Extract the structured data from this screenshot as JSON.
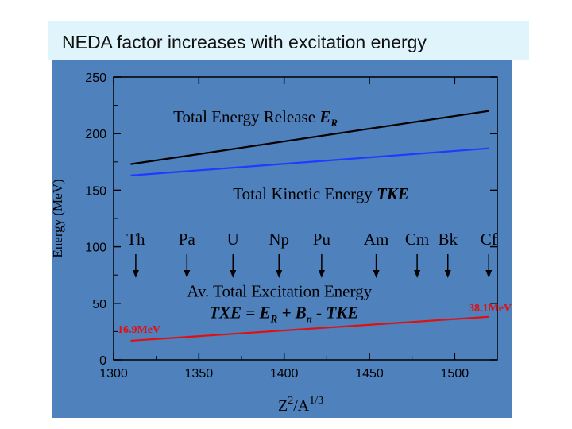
{
  "title": "NEDA factor increases with excitation energy",
  "colors": {
    "panel": "#4f81bd",
    "banner": "#dff4fb",
    "axis": "#000000",
    "ER_line": "#000000",
    "TKE_line": "#1e3cff",
    "TXE_line": "#e01010",
    "highlight": "#e01010"
  },
  "chart_data": {
    "type": "line",
    "xlabel_main": "Z",
    "xlabel_exp1": "2",
    "xlabel_mid": "/A",
    "xlabel_exp2": "1/3",
    "ylabel": "Energy (MeV)",
    "xlim": [
      1300,
      1525
    ],
    "ylim": [
      0,
      250
    ],
    "x_ticks": [
      1300,
      1350,
      1400,
      1450,
      1500
    ],
    "y_ticks": [
      0,
      50,
      100,
      150,
      200,
      250
    ],
    "series": [
      {
        "name": "Total Energy Release E_R",
        "color": "#000000",
        "x": [
          1310,
          1520
        ],
        "y": [
          173,
          220
        ]
      },
      {
        "name": "Total Kinetic Energy TKE",
        "color": "#1e3cff",
        "x": [
          1310,
          1520
        ],
        "y": [
          163,
          187
        ]
      },
      {
        "name": "Av. Total Excitation Energy TXE",
        "color": "#e01010",
        "x": [
          1310,
          1520
        ],
        "y": [
          16.9,
          38.1
        ]
      }
    ],
    "annotations": {
      "er_label_prefix": "Total Energy Release ",
      "er_label_var": "E",
      "er_label_sub": "R",
      "tke_label_prefix": "Total Kinetic Energy ",
      "tke_label_var": "TKE",
      "txe_label_line1": "Av. Total Excitation Energy",
      "txe_eq_lhs": "TXE",
      "txe_eq_eq": " = ",
      "txe_eq_er": "E",
      "txe_eq_er_sub": "R",
      "txe_eq_plus": " + ",
      "txe_eq_bn": "B",
      "txe_eq_bn_sub": "n",
      "txe_eq_rest": " - TKE",
      "txe_start_value": "16.9MeV",
      "txe_end_value": "38.1MeV"
    },
    "elements": [
      {
        "symbol": "Th",
        "x": 1313
      },
      {
        "symbol": "Pa",
        "x": 1343
      },
      {
        "symbol": "U",
        "x": 1370
      },
      {
        "symbol": "Np",
        "x": 1397
      },
      {
        "symbol": "Pu",
        "x": 1422
      },
      {
        "symbol": "Am",
        "x": 1454
      },
      {
        "symbol": "Cm",
        "x": 1478
      },
      {
        "symbol": "Bk",
        "x": 1496
      },
      {
        "symbol": "Cf",
        "x": 1520
      }
    ]
  }
}
